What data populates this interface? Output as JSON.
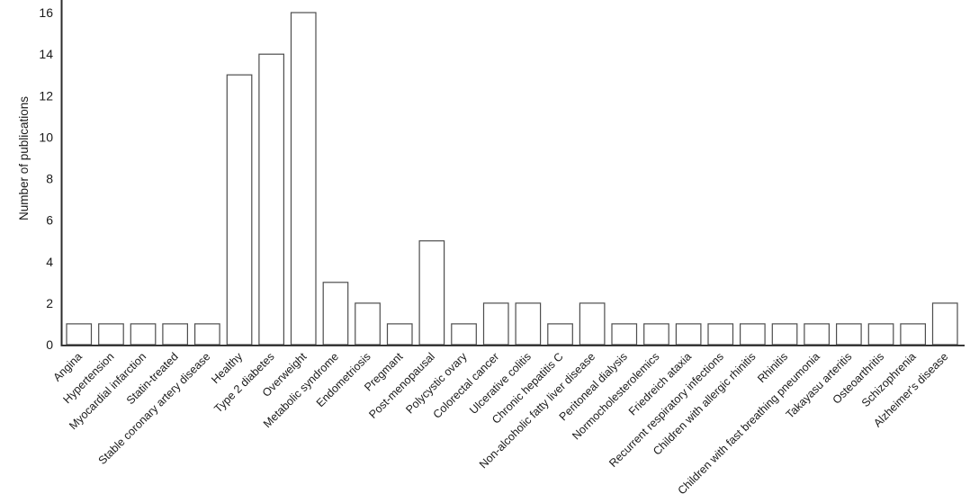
{
  "figure": {
    "background": "#ffffff"
  },
  "chart_data": {
    "type": "bar",
    "title": "",
    "xlabel": "",
    "ylabel": "Number of publications",
    "categories": [
      "Angina",
      "Hypertension",
      "Myocardial infarction",
      "Statin-treated",
      "Stable coronary artery disease",
      "Healthy",
      "Type 2 diabetes",
      "Overweight",
      "Metabolic syndrome",
      "Endometriosis",
      "Pregmant",
      "Post-menopausal",
      "Polycystic ovary",
      "Colorectal cancer",
      "Ulcerative colitis",
      "Chronic hepatitis C",
      "Non-alcoholic fatty liver disease",
      "Peritoneal dialysis",
      "Normocholesterolemics",
      "Friedreich ataxia",
      "Recurrent respiratory infections",
      "Children with allergic rhinitis",
      "Rhinitis",
      "Children with fast breathing pneumonia",
      "Takayasu arteritis",
      "Osteoarthritis",
      "Schizophrenia",
      "Alzheimer's disease"
    ],
    "values": [
      1,
      1,
      1,
      1,
      1,
      13,
      14,
      16,
      3,
      2,
      1,
      5,
      1,
      2,
      2,
      1,
      2,
      1,
      1,
      1,
      1,
      1,
      1,
      1,
      1,
      1,
      1,
      2
    ],
    "yticks": [
      0,
      2,
      4,
      6,
      8,
      10,
      12,
      14,
      16
    ],
    "ylim": [
      0,
      16
    ],
    "grid": false,
    "legend": "none",
    "bar_fill": "#ffffff",
    "bar_stroke": "#4d4d4d",
    "axis_color": "#2b2b2b",
    "text_color": "#1a1a1a"
  }
}
